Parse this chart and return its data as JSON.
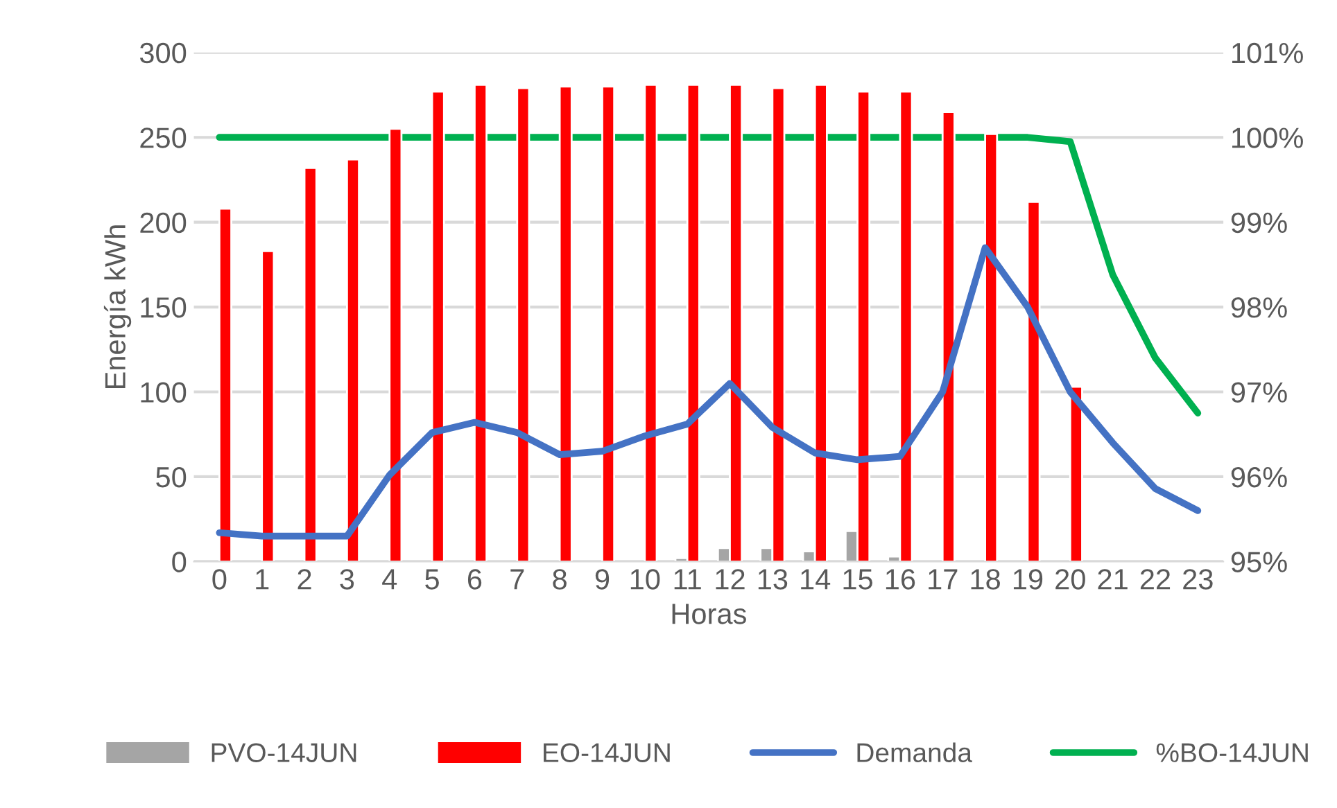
{
  "chart_data": {
    "type": "bar",
    "xlabel": "Horas",
    "ylabel": "Energía kWh",
    "categories": [
      "0",
      "1",
      "2",
      "3",
      "4",
      "5",
      "6",
      "7",
      "8",
      "9",
      "10",
      "11",
      "12",
      "13",
      "14",
      "15",
      "16",
      "17",
      "18",
      "19",
      "20",
      "21",
      "22",
      "23"
    ],
    "series": [
      {
        "name": "PVO-14JUN",
        "color": "#a5a5a5",
        "values": [
          null,
          null,
          null,
          null,
          null,
          null,
          null,
          null,
          null,
          null,
          null,
          2,
          8,
          8,
          6,
          18,
          3,
          null,
          null,
          null,
          null,
          null,
          null,
          null
        ]
      },
      {
        "name": "EO-14JUN",
        "color": "#ff0000",
        "values": [
          208,
          183,
          232,
          237,
          255,
          277,
          281,
          279,
          280,
          280,
          281,
          281,
          281,
          279,
          281,
          277,
          277,
          265,
          252,
          212,
          103,
          null,
          null,
          null
        ]
      },
      {
        "name": "Demanda",
        "type": "line",
        "color": "#4472c4",
        "values": [
          17,
          15,
          15,
          15,
          51,
          76,
          82,
          76,
          63,
          65,
          74,
          81,
          105,
          79,
          64,
          60,
          62,
          100,
          185,
          150,
          100,
          70,
          43,
          30
        ]
      },
      {
        "name": "%BO-14JUN",
        "type": "line",
        "axis": "y2",
        "color": "#00b050",
        "values": [
          100,
          100,
          100,
          100,
          100,
          100,
          100,
          100,
          100,
          100,
          100,
          100,
          100,
          100,
          100,
          100,
          100,
          100,
          100,
          100,
          99.95,
          98.38,
          97.4,
          96.75
        ]
      }
    ],
    "ylim": [
      0,
      300
    ],
    "yticks": [
      0,
      50,
      100,
      150,
      200,
      250,
      300
    ],
    "y2lim": [
      95,
      101
    ],
    "y2ticks": [
      {
        "value": 95,
        "label": "95%"
      },
      {
        "value": 96,
        "label": "96%"
      },
      {
        "value": 97,
        "label": "97%"
      },
      {
        "value": 98,
        "label": "98%"
      },
      {
        "value": 99,
        "label": "99%"
      },
      {
        "value": 100,
        "label": "100%"
      },
      {
        "value": 101,
        "label": "101%"
      }
    ],
    "grid": "y",
    "legend": "bottom",
    "line_style": "solid",
    "marker": "none"
  }
}
